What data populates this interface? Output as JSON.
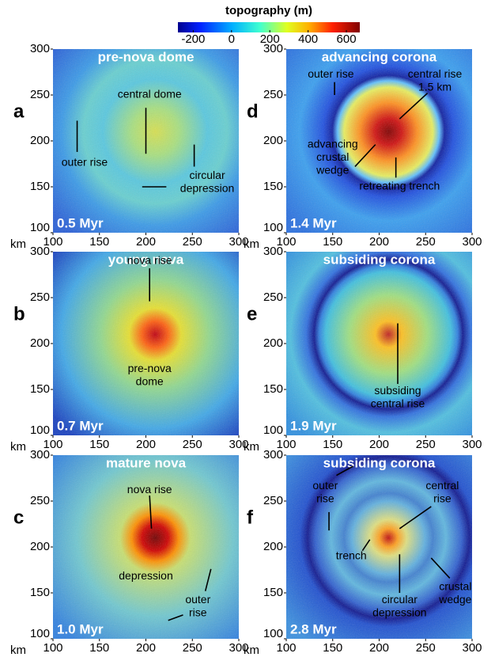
{
  "colorbar": {
    "title": "topography (m)",
    "lim": [
      -280,
      670
    ],
    "ticks": [
      -200,
      0,
      200,
      400,
      600
    ]
  },
  "panels": [
    {
      "letter": "a",
      "title": "pre-nova dome",
      "time": "0.5 Myr",
      "x_unit": "km",
      "xlim": [
        100,
        300
      ],
      "ylim": [
        100,
        300
      ],
      "xticks": [
        100,
        150,
        200,
        250,
        300
      ],
      "yticks": [
        100,
        150,
        200,
        250,
        300
      ],
      "annotations": [
        {
          "lines": [
            "central dome"
          ]
        },
        {
          "lines": [
            "outer rise"
          ]
        },
        {
          "lines": [
            "circular",
            "depression"
          ]
        }
      ]
    },
    {
      "letter": "b",
      "title": "young nova",
      "time": "0.7 Myr",
      "x_unit": "km",
      "xlim": [
        100,
        300
      ],
      "ylim": [
        100,
        300
      ],
      "xticks": [
        100,
        150,
        200,
        250,
        300
      ],
      "yticks": [
        100,
        150,
        200,
        250,
        300
      ],
      "annotations": [
        {
          "lines": [
            "nova rise"
          ]
        },
        {
          "lines": [
            "pre-nova",
            "dome"
          ]
        }
      ]
    },
    {
      "letter": "c",
      "title": "mature nova",
      "time": "1.0 Myr",
      "x_unit": "km",
      "xlim": [
        100,
        300
      ],
      "ylim": [
        100,
        300
      ],
      "xticks": [
        100,
        150,
        200,
        250,
        300
      ],
      "yticks": [
        100,
        150,
        200,
        250,
        300
      ],
      "annotations": [
        {
          "lines": [
            "nova rise"
          ]
        },
        {
          "lines": [
            "depression"
          ]
        },
        {
          "lines": [
            "outer",
            "rise"
          ]
        }
      ]
    },
    {
      "letter": "d",
      "title": "advancing corona",
      "time": "1.4 Myr",
      "x_unit": "km",
      "xlim": [
        100,
        300
      ],
      "ylim": [
        100,
        300
      ],
      "xticks": [
        100,
        150,
        200,
        250,
        300
      ],
      "yticks": [
        100,
        150,
        200,
        250,
        300
      ],
      "annotations": [
        {
          "lines": [
            "outer rise"
          ]
        },
        {
          "lines": [
            "central rise",
            "1.5 km"
          ]
        },
        {
          "lines": [
            "advancing",
            "crustal",
            "wedge"
          ]
        },
        {
          "lines": [
            "retreating trench"
          ]
        }
      ]
    },
    {
      "letter": "e",
      "title": "subsiding corona",
      "time": "1.9 Myr",
      "x_unit": "km",
      "xlim": [
        100,
        300
      ],
      "ylim": [
        100,
        300
      ],
      "xticks": [
        100,
        150,
        200,
        250,
        300
      ],
      "yticks": [
        100,
        150,
        200,
        250,
        300
      ],
      "annotations": [
        {
          "lines": [
            "subsiding",
            "central rise"
          ]
        }
      ]
    },
    {
      "letter": "f",
      "title": "subsiding corona",
      "time": "2.8 Myr",
      "x_unit": "km",
      "xlim": [
        100,
        300
      ],
      "ylim": [
        100,
        300
      ],
      "xticks": [
        100,
        150,
        200,
        250,
        300
      ],
      "yticks": [
        100,
        150,
        200,
        250,
        300
      ],
      "annotations": [
        {
          "lines": [
            "outer",
            "rise"
          ]
        },
        {
          "lines": [
            "central",
            "rise"
          ]
        },
        {
          "lines": [
            "trench"
          ]
        },
        {
          "lines": [
            "circular",
            "depression"
          ]
        },
        {
          "lines": [
            "crustal",
            "wedge"
          ]
        }
      ]
    }
  ]
}
